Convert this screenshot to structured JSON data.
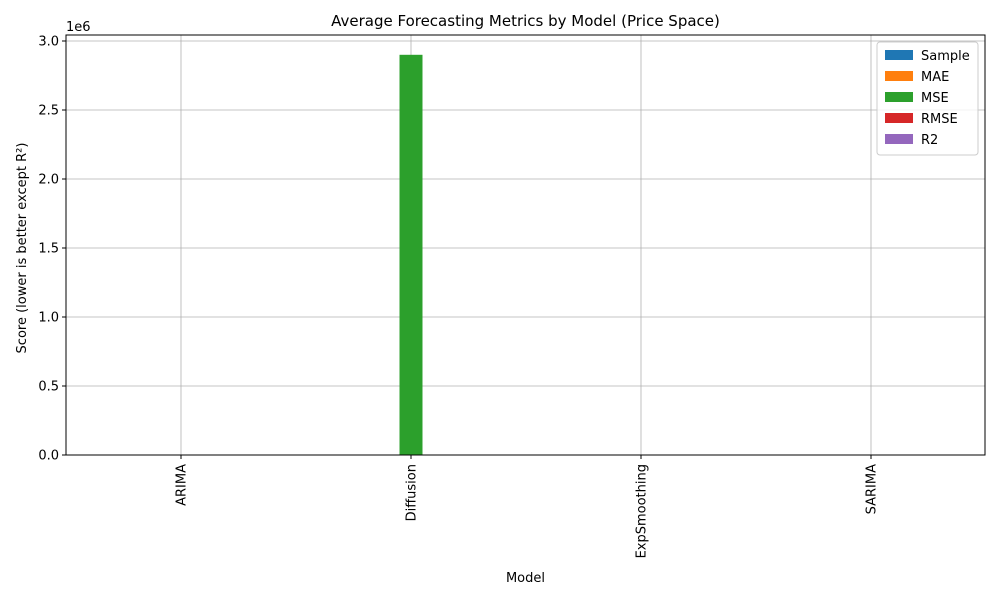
{
  "chart_data": {
    "type": "bar",
    "title": "Average Forecasting Metrics by Model (Price Space)",
    "xlabel": "Model",
    "ylabel": "Score (lower is better except R²)",
    "y_offset_label": "1e6",
    "categories": [
      "ARIMA",
      "Diffusion",
      "ExpSmoothing",
      "SARIMA"
    ],
    "ylim": [
      0,
      3000000
    ],
    "yticks": [
      0,
      500000,
      1000000,
      1500000,
      2000000,
      2500000,
      3000000
    ],
    "ytick_labels": [
      "0.0",
      "0.5",
      "1.0",
      "1.5",
      "2.0",
      "2.5",
      "3.0"
    ],
    "grid": true,
    "legend_position": "top-right",
    "series": [
      {
        "name": "Sample",
        "color": "#1f77b4",
        "values": [
          0,
          0,
          0,
          0
        ]
      },
      {
        "name": "MAE",
        "color": "#ff7f0e",
        "values": [
          0,
          0,
          0,
          0
        ]
      },
      {
        "name": "MSE",
        "color": "#2ca02c",
        "values": [
          0,
          2900000,
          0,
          0
        ]
      },
      {
        "name": "RMSE",
        "color": "#d62728",
        "values": [
          0,
          0,
          0,
          0
        ]
      },
      {
        "name": "R2",
        "color": "#9467bd",
        "values": [
          0,
          0,
          0,
          0
        ]
      }
    ]
  }
}
